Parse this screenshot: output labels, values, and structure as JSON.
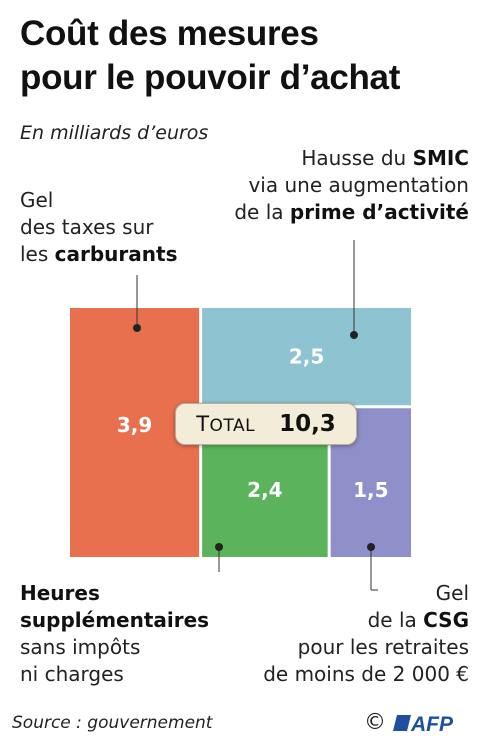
{
  "title_line1": "Coût des mesures",
  "title_line2": "pour le pouvoir d’achat",
  "subtitle": "En milliards d’euros",
  "colors": {
    "carburants": "#e8704f",
    "smic": "#8ec3d1",
    "heures": "#5bb45c",
    "csg": "#8f8fc9"
  },
  "labels": {
    "carburants": {
      "l1": "Gel",
      "l2": "des taxes sur",
      "l3a": "les ",
      "l3b": "carburants"
    },
    "smic": {
      "l1a": "Hausse du ",
      "l1b": "SMIC",
      "l2": "via une augmentation",
      "l3a": "de la ",
      "l3b": "prime d’activité"
    },
    "heures": {
      "l1": "Heures",
      "l2": "supplémentaires",
      "l3": "sans impôts",
      "l4": "ni charges"
    },
    "csg": {
      "l1": "Gel",
      "l2a": "de la ",
      "l2b": "CSG",
      "l3": "pour les retraites",
      "l4": "de moins de 2 000 €"
    }
  },
  "total": {
    "label_cap": "T",
    "label_rest": "OTAL",
    "value": "10,3"
  },
  "source": "Source : gouvernement",
  "copyright": "©",
  "logo": "AFP",
  "chart_data": {
    "type": "treemap",
    "title": "Coût des mesures pour le pouvoir d’achat",
    "unit": "En milliards d’euros",
    "total": 10.3,
    "items": [
      {
        "name": "Gel des taxes sur les carburants",
        "value": 3.9,
        "label": "3,9"
      },
      {
        "name": "Hausse du SMIC via une augmentation de la prime d’activité",
        "value": 2.5,
        "label": "2,5"
      },
      {
        "name": "Heures supplémentaires sans impôts ni charges",
        "value": 2.4,
        "label": "2,4"
      },
      {
        "name": "Gel de la CSG pour les retraites de moins de 2 000 €",
        "value": 1.5,
        "label": "1,5"
      }
    ]
  }
}
